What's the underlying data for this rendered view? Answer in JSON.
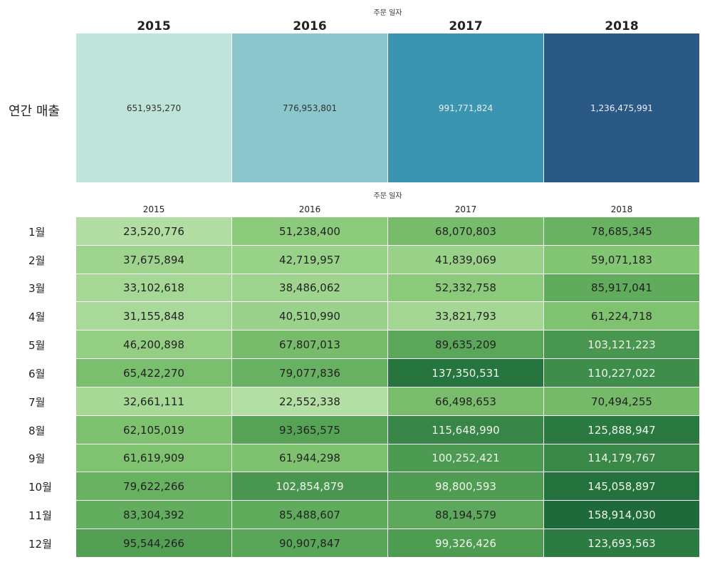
{
  "chart_data": [
    {
      "type": "table",
      "column_header_title": "주문 일자",
      "years": [
        "2015",
        "2016",
        "2017",
        "2018"
      ],
      "row_label": "연간 매출",
      "values": [
        651935270,
        776953801,
        991771824,
        1236475991
      ],
      "labels": [
        "651,935,270",
        "776,953,801",
        "991,771,824",
        "1,236,475,991"
      ],
      "colors": [
        "#bfe4da",
        "#8bc6cc",
        "#3c95b0",
        "#2b5986"
      ],
      "text_colors": [
        "#333333",
        "#333333",
        "#e8f2f6",
        "#e8f0f6"
      ]
    },
    {
      "type": "heatmap",
      "column_header_title": "주문 일자",
      "years": [
        "2015",
        "2016",
        "2017",
        "2018"
      ],
      "months": [
        "1월",
        "2월",
        "3월",
        "4월",
        "5월",
        "6월",
        "7월",
        "8월",
        "9월",
        "10월",
        "11월",
        "12월"
      ],
      "values": [
        [
          23520776,
          51238400,
          68070803,
          78685345
        ],
        [
          37675894,
          42719957,
          41839069,
          59071183
        ],
        [
          33102618,
          38486062,
          52332758,
          85917041
        ],
        [
          31155848,
          40510990,
          33821793,
          61224718
        ],
        [
          46200898,
          67807013,
          89635209,
          103121223
        ],
        [
          65422270,
          79077836,
          137350531,
          110227022
        ],
        [
          32661111,
          22552338,
          66498653,
          70494255
        ],
        [
          62105019,
          93365575,
          115648990,
          125888947
        ],
        [
          61619909,
          61944298,
          100252421,
          114179767
        ],
        [
          79622266,
          102854879,
          98800593,
          145058897
        ],
        [
          83304392,
          85488607,
          88194579,
          158914030
        ],
        [
          95544266,
          90907847,
          99326426,
          123693563
        ]
      ],
      "labels": [
        [
          "23,520,776",
          "51,238,400",
          "68,070,803",
          "78,685,345"
        ],
        [
          "37,675,894",
          "42,719,957",
          "41,839,069",
          "59,071,183"
        ],
        [
          "33,102,618",
          "38,486,062",
          "52,332,758",
          "85,917,041"
        ],
        [
          "31,155,848",
          "40,510,990",
          "33,821,793",
          "61,224,718"
        ],
        [
          "46,200,898",
          "67,807,013",
          "89,635,209",
          "103,121,223"
        ],
        [
          "65,422,270",
          "79,077,836",
          "137,350,531",
          "110,227,022"
        ],
        [
          "32,661,111",
          "22,552,338",
          "66,498,653",
          "70,494,255"
        ],
        [
          "62,105,019",
          "93,365,575",
          "115,648,990",
          "125,888,947"
        ],
        [
          "61,619,909",
          "61,944,298",
          "100,252,421",
          "114,179,767"
        ],
        [
          "79,622,266",
          "102,854,879",
          "98,800,593",
          "145,058,897"
        ],
        [
          "83,304,392",
          "85,488,607",
          "88,194,579",
          "158,914,030"
        ],
        [
          "95,544,266",
          "90,907,847",
          "99,326,426",
          "123,693,563"
        ]
      ],
      "color_scale": [
        "#b4dfa4",
        "#85c774",
        "#5aa658",
        "#2a7a41",
        "#1f6a3a"
      ],
      "dark_text_color": "#222222",
      "light_text_color": "#eef7ea"
    }
  ]
}
